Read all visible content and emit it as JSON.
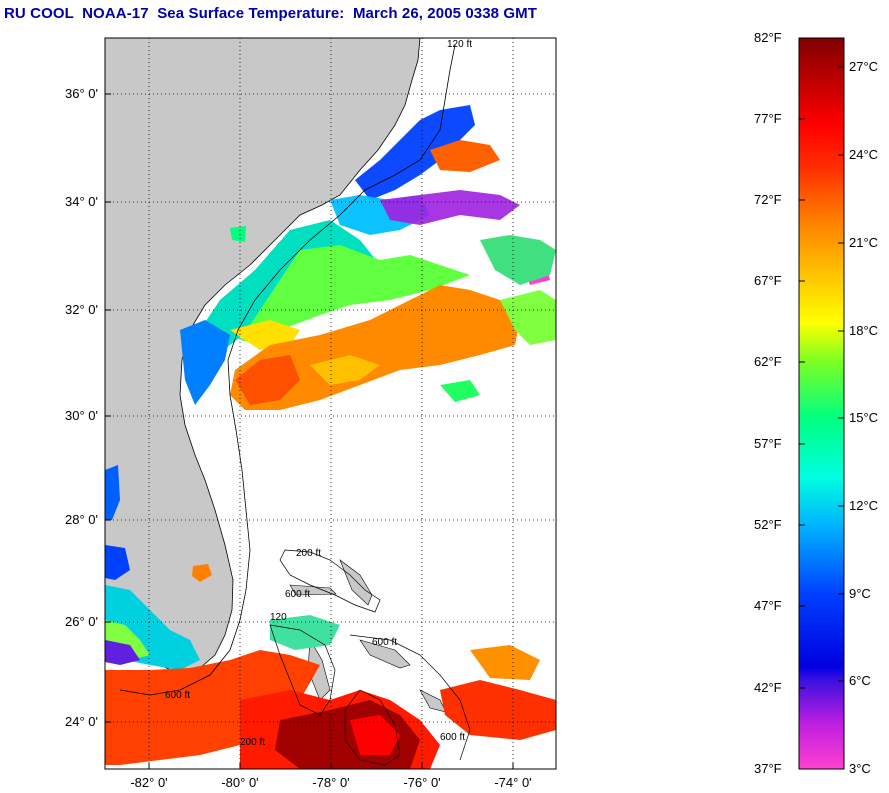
{
  "title": "RU COOL  NOAA-17  Sea Surface Temperature:  March 26, 2005 0338 GMT",
  "map": {
    "lat_labels": [
      "36° 0'",
      "34° 0'",
      "32° 0'",
      "30° 0'",
      "28° 0'",
      "26° 0'",
      "24° 0'"
    ],
    "lon_labels": [
      "-82° 0'",
      "-80° 0'",
      "-78° 0'",
      "-76° 0'",
      "-74° 0'"
    ],
    "land_color": "#c8c8c8",
    "missing_color": "#ffffff",
    "isobath_labels": [
      "120 ft",
      "200 ft",
      "120",
      "600 ft",
      "600 ft",
      "600 ft",
      "200 ft",
      "600 ft"
    ]
  },
  "colorbar": {
    "fahrenheit_labels": [
      "82°F",
      "77°F",
      "72°F",
      "67°F",
      "62°F",
      "57°F",
      "52°F",
      "47°F",
      "42°F",
      "37°F"
    ],
    "celsius_labels": [
      "27°C",
      "24°C",
      "21°C",
      "18°C",
      "15°C",
      "12°C",
      "9°C",
      "6°C",
      "3°C"
    ],
    "fahrenheit_range": [
      37,
      82
    ],
    "celsius_range": [
      3,
      28
    ],
    "colors": [
      "#ff40d0",
      "#c020e0",
      "#4010e0",
      "#0000ff",
      "#0060ff",
      "#00c0ff",
      "#00ffd0",
      "#00ff80",
      "#40ff40",
      "#c0ff00",
      "#ffff00",
      "#ffc000",
      "#ff8000",
      "#ff4000",
      "#ff0000",
      "#d00000",
      "#800000"
    ]
  }
}
